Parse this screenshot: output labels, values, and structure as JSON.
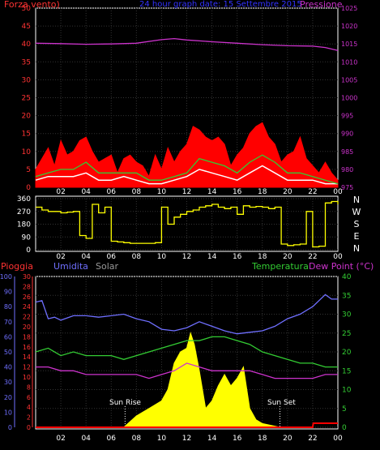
{
  "chart_data": [
    {
      "type": "line",
      "title": "24 hour graph date: 15 Settembre 2015",
      "left_axis_label": "Forza vento)",
      "right_axis_label": "Pressione",
      "left_ticks": [
        0,
        5,
        10,
        15,
        20,
        25,
        30,
        35,
        40,
        45,
        50
      ],
      "right_ticks": [
        975,
        980,
        985,
        990,
        995,
        1000,
        1005,
        1010,
        1015,
        1020,
        1025
      ],
      "x_ticks": [
        "02",
        "04",
        "06",
        "08",
        "10",
        "12",
        "14",
        "16",
        "18",
        "20",
        "22",
        "00"
      ],
      "xlim_hours": [
        0,
        24
      ],
      "grid": true,
      "series": [
        {
          "color": "#cc33cc",
          "axis": "right",
          "x": [
            0,
            2,
            4,
            6,
            8,
            10,
            11,
            12,
            14,
            16,
            18,
            20,
            22,
            23,
            24
          ],
          "y": [
            1015.2,
            1015.1,
            1014.9,
            1015.0,
            1015.2,
            1016.2,
            1016.5,
            1016.1,
            1015.6,
            1015.2,
            1014.8,
            1014.5,
            1014.4,
            1014.0,
            1013.2
          ]
        },
        {
          "color": "#ff0000",
          "axis": "left",
          "x": [
            0,
            0.5,
            1,
            1.5,
            2,
            2.5,
            3,
            3.5,
            4,
            4.5,
            5,
            5.5,
            6,
            6.5,
            7,
            7.5,
            8,
            8.5,
            9,
            9.5,
            10,
            10.5,
            11,
            11.5,
            12,
            12.5,
            13,
            13.5,
            14,
            14.5,
            15,
            15.5,
            16,
            16.5,
            17,
            17.5,
            18,
            18.5,
            19,
            19.5,
            20,
            20.5,
            21,
            21.5,
            22,
            22.5,
            23,
            23.5,
            24
          ],
          "y": [
            5,
            8,
            11,
            6,
            13,
            9,
            10,
            13,
            14,
            10,
            7,
            8,
            9,
            4,
            8,
            9,
            7,
            6,
            3,
            9,
            5,
            11,
            7,
            10,
            12,
            17,
            16,
            14,
            13,
            14,
            12,
            6,
            9,
            11,
            15,
            17,
            18,
            14,
            12,
            7,
            9,
            10,
            14,
            8,
            6,
            4,
            7,
            4,
            2
          ]
        },
        {
          "color": "#33cc33",
          "axis": "left",
          "x": [
            0,
            1,
            2,
            3,
            4,
            5,
            6,
            7,
            8,
            9,
            10,
            11,
            12,
            13,
            14,
            15,
            16,
            17,
            18,
            19,
            20,
            21,
            22,
            23,
            24
          ],
          "y": [
            3,
            4,
            5,
            5,
            7,
            4,
            4,
            4,
            4,
            2,
            2,
            3,
            4,
            8,
            7,
            6,
            4,
            7,
            9,
            7,
            4,
            4,
            3,
            2,
            1
          ]
        },
        {
          "color": "#ffffff",
          "axis": "left",
          "x": [
            0,
            1,
            2,
            3,
            4,
            5,
            6,
            7,
            8,
            9,
            10,
            11,
            12,
            13,
            14,
            15,
            16,
            17,
            18,
            19,
            20,
            21,
            22,
            23,
            24
          ],
          "y": [
            2,
            3,
            3,
            3,
            4,
            2,
            2,
            3,
            2,
            1,
            1,
            2,
            3,
            5,
            4,
            3,
            2,
            4,
            6,
            4,
            2,
            2,
            2,
            1,
            1
          ]
        }
      ]
    },
    {
      "type": "line",
      "title": "",
      "left_ticks": [
        0,
        90,
        180,
        270,
        360
      ],
      "right_labels": [
        "N",
        "W",
        "S",
        "E",
        "N"
      ],
      "ylim": [
        0,
        360
      ],
      "x_ticks": [
        "02",
        "04",
        "06",
        "08",
        "10",
        "12",
        "14",
        "16",
        "18",
        "20",
        "22",
        "00"
      ],
      "series": [
        {
          "color": "#ffff00",
          "x": [
            0,
            0.5,
            1,
            1.5,
            2,
            2.5,
            3,
            3.5,
            4,
            4.5,
            5,
            5.5,
            6,
            6.5,
            7,
            7.5,
            8,
            8.5,
            9,
            9.5,
            10,
            10.5,
            11,
            11.5,
            12,
            12.5,
            13,
            13.5,
            14,
            14.5,
            15,
            15.5,
            16,
            16.5,
            17,
            17.5,
            18,
            18.5,
            19,
            19.5,
            20,
            20.5,
            21,
            21.5,
            22,
            22.5,
            23,
            23.5,
            24
          ],
          "y": [
            300,
            280,
            270,
            270,
            260,
            265,
            270,
            100,
            80,
            320,
            260,
            300,
            60,
            55,
            50,
            45,
            45,
            45,
            45,
            50,
            300,
            180,
            230,
            250,
            270,
            280,
            300,
            310,
            320,
            300,
            290,
            300,
            250,
            310,
            300,
            305,
            300,
            290,
            300,
            40,
            30,
            35,
            40,
            270,
            20,
            25,
            330,
            340,
            320
          ]
        }
      ]
    },
    {
      "type": "line",
      "title": "",
      "labels": {
        "rain": "Pioggia",
        "humidity": "Umidita",
        "solar": "Solar",
        "temperature": "Temperatura",
        "dewpoint": "Dew Point (°C)"
      },
      "humidity_ticks": [
        0,
        10,
        20,
        30,
        40,
        50,
        60,
        70,
        80,
        90,
        100
      ],
      "rain_ticks": [
        0,
        2,
        4,
        6,
        8,
        10,
        12,
        14,
        16,
        18,
        20,
        22,
        24,
        26,
        28,
        30
      ],
      "temp_ticks": [
        0,
        5,
        10,
        15,
        20,
        25,
        30,
        35,
        40
      ],
      "x_ticks": [
        "02",
        "04",
        "06",
        "08",
        "10",
        "12",
        "14",
        "16",
        "18",
        "20",
        "22",
        "00"
      ],
      "annotations": [
        "Sun Rise",
        "Sun Set"
      ],
      "sunrise_hour": 7.1,
      "sunset_hour": 19.4,
      "series": [
        {
          "color": "#6f6fff",
          "axis": "humidity",
          "x": [
            0,
            0.5,
            1,
            1.5,
            2,
            3,
            4,
            5,
            6,
            7,
            8,
            9,
            10,
            11,
            12,
            13,
            14,
            15,
            16,
            17,
            18,
            19,
            20,
            21,
            22,
            23,
            23.5,
            24
          ],
          "y": [
            83,
            84,
            72,
            73,
            71,
            74,
            74,
            73,
            74,
            75,
            72,
            70,
            65,
            64,
            66,
            70,
            67,
            64,
            62,
            63,
            64,
            67,
            72,
            75,
            80,
            88,
            85,
            85
          ]
        },
        {
          "color": "#33cc33",
          "axis": "temperature",
          "x": [
            0,
            1,
            2,
            3,
            4,
            5,
            6,
            7,
            8,
            9,
            10,
            11,
            12,
            13,
            14,
            15,
            16,
            17,
            18,
            19,
            20,
            21,
            22,
            23,
            24
          ],
          "y": [
            20,
            21,
            19,
            20,
            19,
            19,
            19,
            18,
            19,
            20,
            21,
            22,
            23,
            23,
            24,
            24,
            23,
            22,
            20,
            19,
            18,
            17,
            17,
            16,
            16
          ]
        },
        {
          "color": "#cc33cc",
          "axis": "temperature",
          "x": [
            0,
            1,
            2,
            3,
            4,
            5,
            6,
            7,
            8,
            9,
            10,
            11,
            12,
            13,
            14,
            15,
            16,
            17,
            18,
            19,
            20,
            21,
            22,
            23,
            24
          ],
          "y": [
            16,
            16,
            15,
            15,
            14,
            14,
            14,
            14,
            14,
            13,
            14,
            15,
            17,
            16,
            15,
            15,
            15,
            15,
            14,
            13,
            13,
            13,
            13,
            14,
            14
          ]
        },
        {
          "color": "#ffff00",
          "axis": "temperature",
          "x": [
            7,
            8,
            9,
            10,
            10.5,
            11,
            11.5,
            12,
            12.3,
            12.6,
            13,
            13.5,
            14,
            14.5,
            15,
            15.5,
            16,
            16.5,
            17,
            17.5,
            18,
            19.4
          ],
          "y": [
            0,
            3,
            5,
            7,
            10,
            17,
            20,
            21,
            25,
            22,
            15,
            5,
            7,
            11,
            14,
            11,
            13,
            16,
            5,
            2,
            1,
            0
          ]
        },
        {
          "color": "#ff0000",
          "axis": "rain",
          "x": [
            0,
            22,
            22.05,
            23.9,
            24
          ],
          "y": [
            0,
            0,
            0.8,
            0.8,
            0.8
          ]
        }
      ]
    }
  ]
}
